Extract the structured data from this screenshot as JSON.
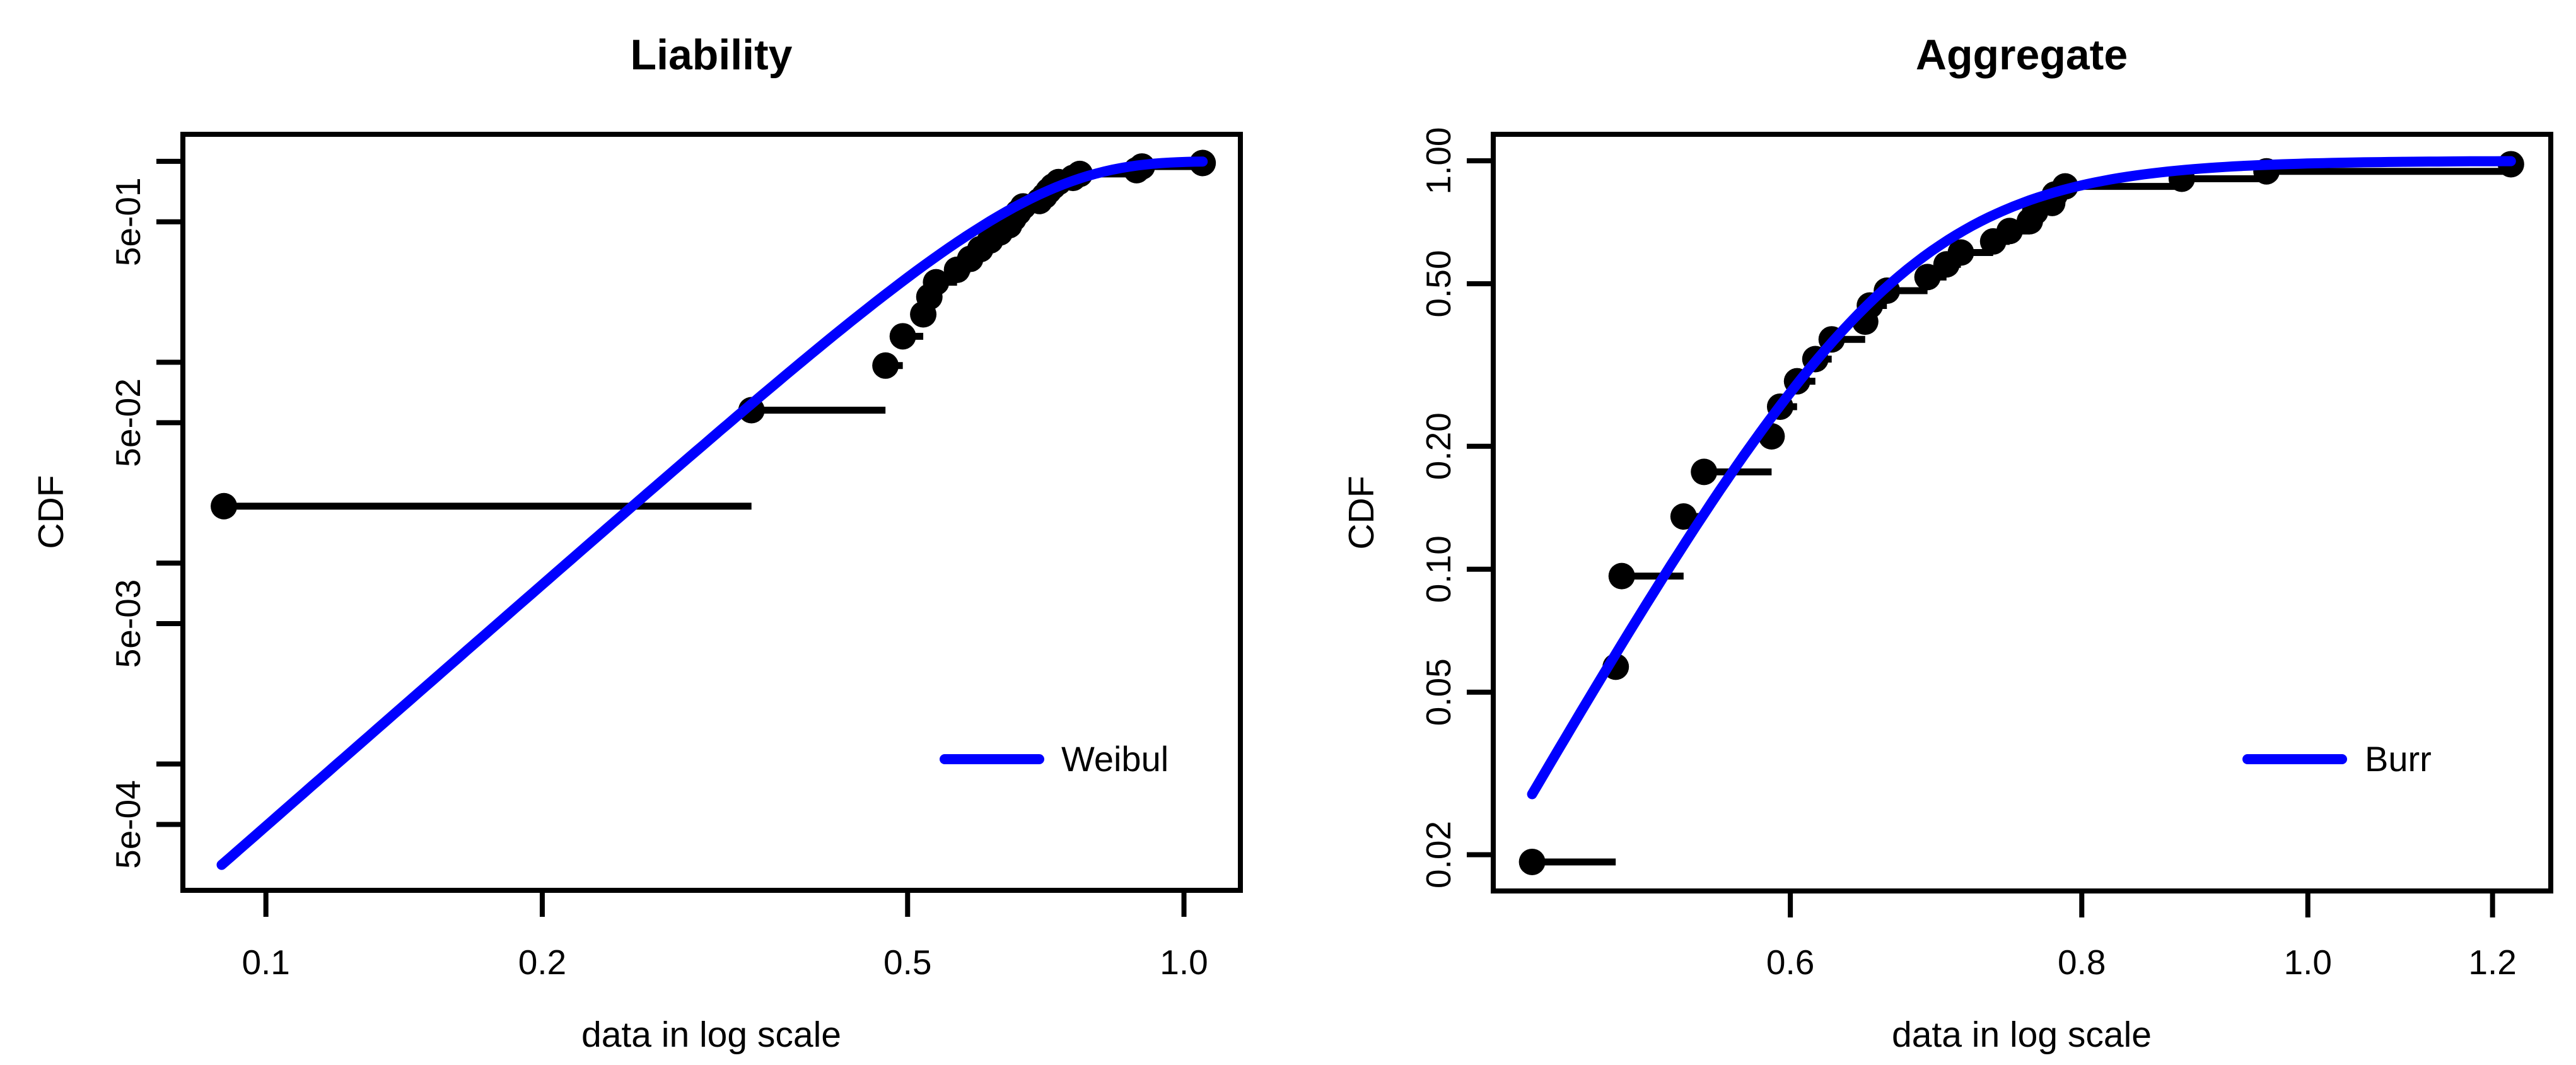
{
  "figure": {
    "background": "#ffffff",
    "point_color": "#000000",
    "curve_color": "#0000ff"
  },
  "chart_data": [
    {
      "id": "liability",
      "type": "line",
      "subtype": "ecdf-with-fitted-cdf",
      "title": "Liability",
      "xlabel": "data in log scale",
      "ylabel": "CDF",
      "x_scale": "log",
      "y_scale": "log",
      "x_range": [
        0.0812,
        1.152
      ],
      "y_range": [
        0.000235,
        1.363
      ],
      "grid": false,
      "x_ticks": [
        {
          "v": 0.1,
          "label": "0.1"
        },
        {
          "v": 0.2,
          "label": "0.2"
        },
        {
          "v": 0.5,
          "label": "0.5"
        },
        {
          "v": 1.0,
          "label": "1.0"
        }
      ],
      "y_ticks": [
        {
          "v": 1.0,
          "label": ""
        },
        {
          "v": 0.5,
          "label": "5e-01"
        },
        {
          "v": 0.1,
          "label": ""
        },
        {
          "v": 0.05,
          "label": "5e-02"
        },
        {
          "v": 0.01,
          "label": ""
        },
        {
          "v": 0.005,
          "label": "5e-03"
        },
        {
          "v": 0.001,
          "label": ""
        },
        {
          "v": 0.0005,
          "label": "5e-04"
        }
      ],
      "ecdf_points": [
        [
          0.09,
          0.0192
        ],
        [
          0.338,
          0.0577
        ],
        [
          0.473,
          0.0962
        ],
        [
          0.494,
          0.1346
        ],
        [
          0.52,
          0.1731
        ],
        [
          0.528,
          0.2115
        ],
        [
          0.537,
          0.25
        ],
        [
          0.566,
          0.2885
        ],
        [
          0.585,
          0.3269
        ],
        [
          0.6,
          0.3654
        ],
        [
          0.615,
          0.4038
        ],
        [
          0.63,
          0.4423
        ],
        [
          0.645,
          0.4808
        ],
        [
          0.652,
          0.5192
        ],
        [
          0.66,
          0.5577
        ],
        [
          0.668,
          0.5962
        ],
        [
          0.696,
          0.6346
        ],
        [
          0.705,
          0.6731
        ],
        [
          0.712,
          0.7115
        ],
        [
          0.72,
          0.75
        ],
        [
          0.73,
          0.7885
        ],
        [
          0.757,
          0.8269
        ],
        [
          0.77,
          0.8654
        ],
        [
          0.888,
          0.9038
        ],
        [
          0.9,
          0.9423
        ],
        [
          1.048,
          0.9808
        ]
      ],
      "fit": {
        "label": "Weibul",
        "distribution": "weibull",
        "shape": 4.0,
        "scale": 0.672,
        "x_from": 0.0895,
        "x_to": 1.048,
        "color": "#0000ff"
      },
      "legend_position": "bottom-right"
    },
    {
      "id": "aggregate",
      "type": "line",
      "subtype": "ecdf-with-fitted-cdf",
      "title": "Aggregate",
      "xlabel": "data in log scale",
      "ylabel": "CDF",
      "x_scale": "log",
      "y_scale": "log",
      "x_range": [
        0.4475,
        1.271
      ],
      "y_range": [
        0.0163,
        1.161
      ],
      "grid": false,
      "x_ticks": [
        {
          "v": 0.6,
          "label": "0.6"
        },
        {
          "v": 0.8,
          "label": "0.8"
        },
        {
          "v": 1.0,
          "label": "1.0"
        },
        {
          "v": 1.2,
          "label": "1.2"
        }
      ],
      "y_ticks": [
        {
          "v": 1.0,
          "label": "1.00"
        },
        {
          "v": 0.5,
          "label": "0.50"
        },
        {
          "v": 0.2,
          "label": "0.20"
        },
        {
          "v": 0.1,
          "label": "0.10"
        },
        {
          "v": 0.05,
          "label": "0.05"
        },
        {
          "v": 0.02,
          "label": "0.02"
        }
      ],
      "ecdf_points": [
        [
          0.465,
          0.0192
        ],
        [
          0.505,
          0.0577
        ],
        [
          0.508,
          0.0962
        ],
        [
          0.54,
          0.1346
        ],
        [
          0.551,
          0.1731
        ],
        [
          0.589,
          0.2115
        ],
        [
          0.594,
          0.25
        ],
        [
          0.604,
          0.2885
        ],
        [
          0.615,
          0.3269
        ],
        [
          0.625,
          0.3654
        ],
        [
          0.646,
          0.4038
        ],
        [
          0.649,
          0.4423
        ],
        [
          0.66,
          0.4808
        ],
        [
          0.687,
          0.5192
        ],
        [
          0.7,
          0.5577
        ],
        [
          0.71,
          0.5962
        ],
        [
          0.733,
          0.6346
        ],
        [
          0.745,
          0.6731
        ],
        [
          0.76,
          0.7115
        ],
        [
          0.764,
          0.75
        ],
        [
          0.777,
          0.7885
        ],
        [
          0.779,
          0.8269
        ],
        [
          0.787,
          0.8654
        ],
        [
          0.883,
          0.9038
        ],
        [
          0.96,
          0.9423
        ],
        [
          1.222,
          0.9808
        ]
      ],
      "fit": {
        "label": "Burr",
        "distribution": "burr",
        "shape1": 10.0,
        "shape2": 1.02,
        "scale": 0.664,
        "x_from": 0.465,
        "x_to": 1.222,
        "color": "#0000ff"
      },
      "legend_position": "bottom-right"
    }
  ]
}
